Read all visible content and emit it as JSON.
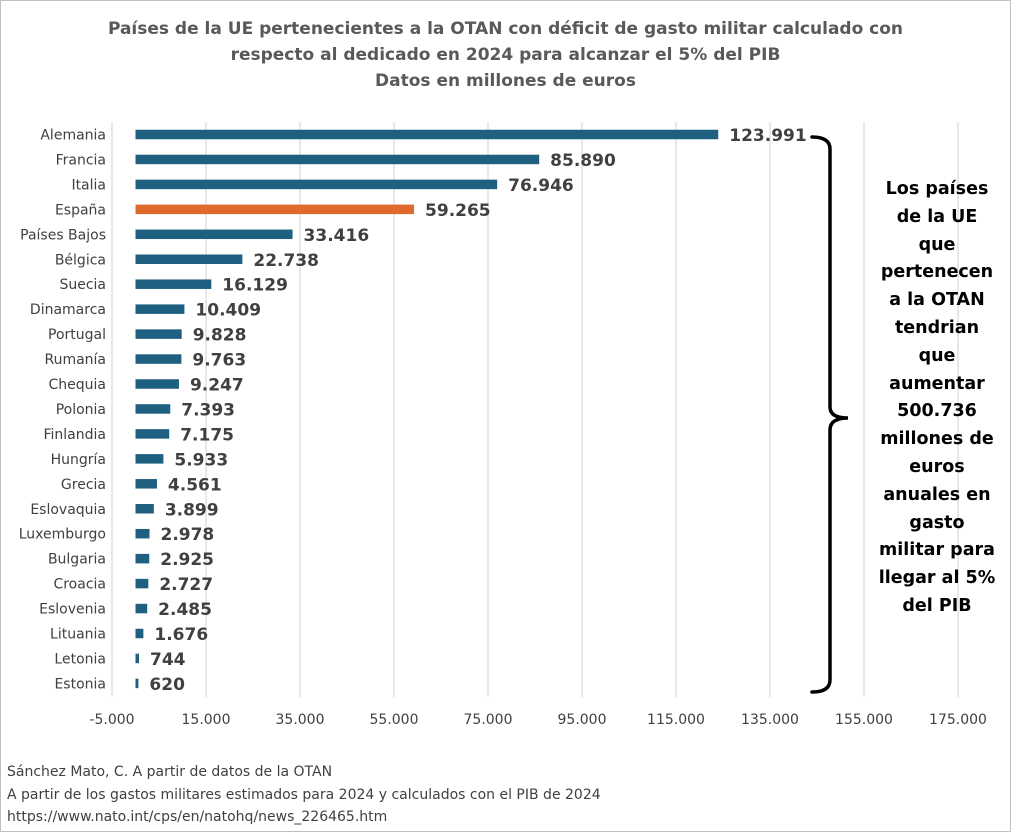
{
  "chart_data": {
    "type": "bar",
    "orientation": "horizontal",
    "title": [
      "Países de la UE pertenecientes a la OTAN con déficit de gasto militar calculado con",
      "respecto al dedicado en 2024 para alcanzar el 5% del PIB",
      "Datos en millones de euros"
    ],
    "categories": [
      "Alemania",
      "Francia",
      "Italia",
      "España",
      "Países Bajos",
      "Bélgica",
      "Suecia",
      "Dinamarca",
      "Portugal",
      "Rumanía",
      "Chequia",
      "Polonia",
      "Finlandia",
      "Hungría",
      "Grecia",
      "Eslovaquia",
      "Luxemburgo",
      "Bulgaria",
      "Croacia",
      "Eslovenia",
      "Lituania",
      "Letonia",
      "Estonia"
    ],
    "values": [
      123991,
      85890,
      76946,
      59265,
      33416,
      22738,
      16129,
      10409,
      9828,
      9763,
      9247,
      7393,
      7175,
      5933,
      4561,
      3899,
      2978,
      2925,
      2727,
      2485,
      1676,
      744,
      620
    ],
    "value_labels": [
      "123.991",
      "85.890",
      "76.946",
      "59.265",
      "33.416",
      "22.738",
      "16.129",
      "10.409",
      "9.828",
      "9.763",
      "9.247",
      "7.393",
      "7.175",
      "5.933",
      "4.561",
      "3.899",
      "2.978",
      "2.925",
      "2.727",
      "2.485",
      "1.676",
      "744",
      "620"
    ],
    "xlim": [
      -5000,
      175000
    ],
    "xticks": [
      -5000,
      15000,
      35000,
      55000,
      75000,
      95000,
      115000,
      135000,
      155000,
      175000
    ],
    "xtick_labels": [
      "-5.000",
      "15.000",
      "35.000",
      "55.000",
      "75.000",
      "95.000",
      "115.000",
      "135.000",
      "155.000",
      "175.000"
    ],
    "grid": "vertical",
    "colors": {
      "bar": "#1f5f7f",
      "highlight": "#e06a2e",
      "grid": "#d9d9d9",
      "label": "#404040"
    },
    "highlight_category": "España",
    "annotation": [
      "Los países",
      "de la UE",
      "que",
      "pertenecen",
      "a la OTAN",
      "tendrian",
      "que",
      "aumentar",
      "500.736",
      "millones de",
      "euros",
      "anuales en",
      "gasto",
      "militar para",
      "llegar al 5%",
      "del PIB"
    ]
  },
  "source": [
    "Sánchez Mato, C.  A partir de datos de la OTAN",
    "A partir de los gastos militares estimados para 2024 y calculados con el PIB de 2024",
    "https://www.nato.int/cps/en/natohq/news_226465.htm"
  ]
}
